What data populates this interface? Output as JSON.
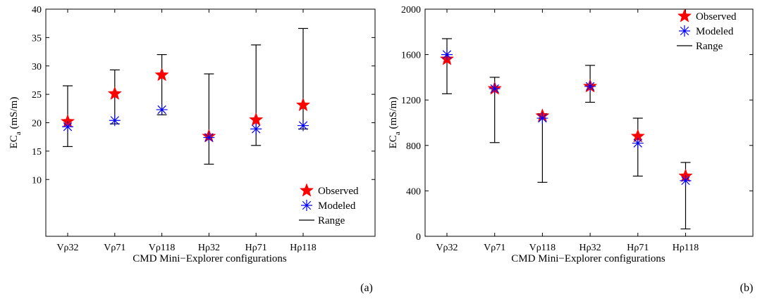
{
  "chart_data": [
    {
      "type": "scatter",
      "panel_label": "(a)",
      "categories": [
        "Vρ32",
        "Vρ71",
        "Vρ118",
        "Hρ32",
        "Hρ71",
        "Hρ118"
      ],
      "xlabel": "CMD Mini−Explorer configurations",
      "ylabel_main": "EC",
      "ylabel_sub": "a",
      "ylabel_unit": "(mS/m)",
      "ylim": [
        0,
        40
      ],
      "yticks": [
        10,
        15,
        20,
        25,
        30,
        35,
        40
      ],
      "legend": {
        "position": "bottom-right",
        "items": [
          "Observed",
          "Modeled",
          "Range"
        ]
      },
      "series": [
        {
          "name": "Observed",
          "marker": "star",
          "color": "#ff0000",
          "values": [
            20.2,
            25.1,
            28.4,
            17.6,
            20.5,
            23.1
          ]
        },
        {
          "name": "Modeled",
          "marker": "asterisk",
          "color": "#0000ff",
          "values": [
            19.3,
            20.4,
            22.3,
            17.4,
            18.9,
            19.5
          ]
        }
      ],
      "range": {
        "name": "Range",
        "low": [
          15.8,
          19.8,
          21.4,
          12.7,
          16.0,
          18.9
        ],
        "high": [
          26.5,
          29.3,
          32.0,
          28.6,
          33.7,
          36.6
        ]
      }
    },
    {
      "type": "scatter",
      "panel_label": "(b)",
      "categories": [
        "Vρ32",
        "Vρ71",
        "Vρ118",
        "Hρ32",
        "Hρ71",
        "Hρ118"
      ],
      "xlabel": "CMD Mini−Explorer configurations",
      "ylabel_main": "EC",
      "ylabel_sub": "a",
      "ylabel_unit": "(mS/m)",
      "ylim": [
        0,
        2000
      ],
      "yticks": [
        0,
        400,
        800,
        1200,
        1600,
        2000
      ],
      "legend": {
        "position": "top-right",
        "items": [
          "Observed",
          "Modeled",
          "Range"
        ]
      },
      "series": [
        {
          "name": "Observed",
          "marker": "star",
          "color": "#ff0000",
          "values": [
            1560,
            1300,
            1060,
            1320,
            880,
            530
          ]
        },
        {
          "name": "Modeled",
          "marker": "asterisk",
          "color": "#0000ff",
          "values": [
            1600,
            1300,
            1040,
            1320,
            820,
            490
          ]
        }
      ],
      "range": {
        "name": "Range",
        "low": [
          1255,
          825,
          475,
          1180,
          530,
          65
        ],
        "high": [
          1740,
          1400,
          1080,
          1505,
          1040,
          650
        ]
      }
    }
  ]
}
